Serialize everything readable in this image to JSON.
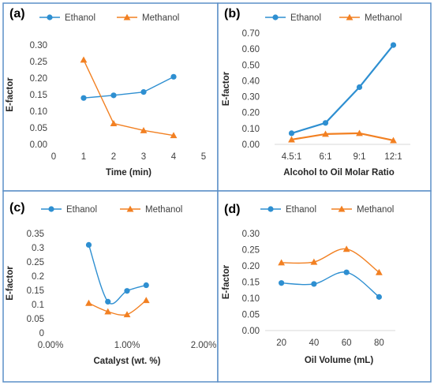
{
  "colors": {
    "ethanol": "#2e8fd1",
    "methanol": "#f28022",
    "border": "#5b8fc7"
  },
  "chart_data": [
    {
      "label": "(a)",
      "type": "scatter",
      "series": [
        {
          "name": "Ethanol",
          "x": [
            1,
            2,
            3,
            4
          ],
          "values": [
            0.14,
            0.148,
            0.158,
            0.204
          ]
        },
        {
          "name": "Methanol",
          "x": [
            1,
            2,
            3,
            4
          ],
          "values": [
            0.255,
            0.063,
            0.042,
            0.027
          ]
        }
      ],
      "xlabel": "Time (min)",
      "ylabel": "E-factor",
      "xlim": [
        0,
        5
      ],
      "ylim": [
        0,
        0.3
      ],
      "x_ticks": [
        "0",
        "1",
        "2",
        "3",
        "4",
        "5"
      ],
      "y_ticks": [
        "0.00",
        "0.05",
        "0.10",
        "0.15",
        "0.20",
        "0.25",
        "0.30"
      ],
      "smooth": false,
      "legend_position": "top"
    },
    {
      "label": "(b)",
      "type": "line",
      "categories": [
        "4.5:1",
        "6:1",
        "9:1",
        "12:1"
      ],
      "series": [
        {
          "name": "Ethanol",
          "values": [
            0.07,
            0.135,
            0.36,
            0.625
          ]
        },
        {
          "name": "Methanol",
          "values": [
            0.03,
            0.065,
            0.07,
            0.025
          ]
        }
      ],
      "xlabel": "Alcohol to Oil Molar Ratio",
      "ylabel": "E-factor",
      "ylim": [
        0,
        0.7
      ],
      "y_ticks": [
        "0.00",
        "0.10",
        "0.20",
        "0.30",
        "0.40",
        "0.50",
        "0.60",
        "0.70"
      ],
      "smooth": false,
      "legend_position": "top"
    },
    {
      "label": "(c)",
      "type": "scatter",
      "series": [
        {
          "name": "Ethanol",
          "x": [
            0.005,
            0.0075,
            0.01,
            0.0125
          ],
          "values": [
            0.31,
            0.11,
            0.148,
            0.168
          ]
        },
        {
          "name": "Methanol",
          "x": [
            0.005,
            0.0075,
            0.01,
            0.0125
          ],
          "values": [
            0.105,
            0.075,
            0.065,
            0.115
          ]
        }
      ],
      "xlabel": "Catalyst (wt. %)",
      "ylabel": "E-factor",
      "xlim": [
        0,
        0.02
      ],
      "ylim": [
        0,
        0.35
      ],
      "x_ticks": [
        "0.00%",
        "1.00%",
        "2.00%"
      ],
      "y_ticks": [
        "0",
        "0.05",
        "0.1",
        "0.15",
        "0.2",
        "0.25",
        "0.3",
        "0.35"
      ],
      "smooth": true,
      "legend_position": "top"
    },
    {
      "label": "(d)",
      "type": "line",
      "categories": [
        "20",
        "40",
        "60",
        "80"
      ],
      "series": [
        {
          "name": "Ethanol",
          "values": [
            0.147,
            0.144,
            0.18,
            0.104
          ]
        },
        {
          "name": "Methanol",
          "values": [
            0.21,
            0.212,
            0.252,
            0.18
          ]
        }
      ],
      "xlabel": "Oil Volume (mL)",
      "ylabel": "E-factor",
      "ylim": [
        0,
        0.3
      ],
      "y_ticks": [
        "0.00",
        "0.05",
        "0.10",
        "0.15",
        "0.20",
        "0.25",
        "0.30"
      ],
      "smooth": true,
      "legend_position": "top"
    }
  ]
}
